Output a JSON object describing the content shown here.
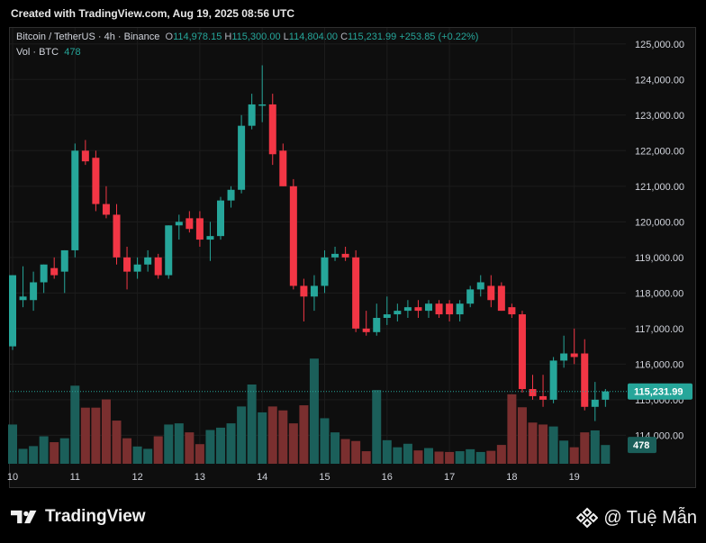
{
  "header": {
    "created_text": "Created with TradingView.com, Aug 19, 2025 08:56 UTC"
  },
  "legend": {
    "symbol": "Bitcoin / TetherUS · 4h · Binance",
    "o_label": "O",
    "o_value": "114,978.15",
    "h_label": "H",
    "h_value": "115,300.00",
    "l_label": "L",
    "l_value": "114,804.00",
    "c_label": "C",
    "c_value": "115,231.99",
    "change": "+253.85 (+0.22%)",
    "vol_label": "Vol · BTC",
    "vol_value": "478"
  },
  "colors": {
    "up": "#26a69a",
    "down": "#f23645",
    "vol_up": "#1b5f5a",
    "vol_down": "#7a2f2f",
    "grid": "#1c1c1c",
    "axis_text": "#d1d4dc"
  },
  "footer": {
    "brand": "TradingView",
    "watermark": "@ Tuệ Mẫn"
  },
  "chart_data": {
    "type": "candlestick",
    "interval": "4h",
    "price_axis": {
      "side": "right",
      "range": [
        113200,
        125450
      ],
      "ticks": [
        114000,
        115000,
        116000,
        117000,
        118000,
        119000,
        120000,
        121000,
        122000,
        123000,
        124000,
        125000
      ],
      "tick_labels": [
        "114,000.00",
        "115,000.00",
        "116,000.00",
        "117,000.00",
        "118,000.00",
        "119,000.00",
        "120,000.00",
        "121,000.00",
        "122,000.00",
        "123,000.00",
        "124,000.00",
        "125,000.00"
      ]
    },
    "time_axis": {
      "day_labels": [
        "10",
        "11",
        "12",
        "13",
        "14",
        "15",
        "16",
        "17",
        "18",
        "19"
      ],
      "label_candle_index": [
        0,
        6,
        12,
        18,
        24,
        30,
        36,
        42,
        48,
        54
      ]
    },
    "last_price": {
      "value": 115231.99,
      "label": "115,231.99"
    },
    "last_volume": {
      "value": 478,
      "label": "478"
    },
    "volume_range": [
      0,
      2800
    ],
    "candles": [
      {
        "o": 116500,
        "h": 118500,
        "l": 116400,
        "c": 118500,
        "v": 1000
      },
      {
        "o": 117800,
        "h": 118750,
        "l": 117600,
        "c": 117900,
        "v": 380
      },
      {
        "o": 117800,
        "h": 118600,
        "l": 117500,
        "c": 118300,
        "v": 450
      },
      {
        "o": 118300,
        "h": 118800,
        "l": 118000,
        "c": 118800,
        "v": 700
      },
      {
        "o": 118700,
        "h": 119000,
        "l": 118400,
        "c": 118500,
        "v": 550
      },
      {
        "o": 118600,
        "h": 119200,
        "l": 118000,
        "c": 119200,
        "v": 650
      },
      {
        "o": 119200,
        "h": 122200,
        "l": 119000,
        "c": 122000,
        "v": 1990
      },
      {
        "o": 122000,
        "h": 122300,
        "l": 121600,
        "c": 121700,
        "v": 1430
      },
      {
        "o": 121800,
        "h": 122000,
        "l": 120300,
        "c": 120500,
        "v": 1430
      },
      {
        "o": 120500,
        "h": 121000,
        "l": 120100,
        "c": 120200,
        "v": 1640
      },
      {
        "o": 120200,
        "h": 120500,
        "l": 118800,
        "c": 119000,
        "v": 1100
      },
      {
        "o": 119000,
        "h": 119300,
        "l": 118100,
        "c": 118600,
        "v": 650
      },
      {
        "o": 118600,
        "h": 119000,
        "l": 118400,
        "c": 118800,
        "v": 440
      },
      {
        "o": 118800,
        "h": 119200,
        "l": 118600,
        "c": 119000,
        "v": 380
      },
      {
        "o": 119000,
        "h": 119100,
        "l": 118400,
        "c": 118500,
        "v": 700
      },
      {
        "o": 118500,
        "h": 119900,
        "l": 118400,
        "c": 119900,
        "v": 1000
      },
      {
        "o": 119900,
        "h": 120200,
        "l": 119500,
        "c": 120000,
        "v": 1030
      },
      {
        "o": 120100,
        "h": 120300,
        "l": 119700,
        "c": 119800,
        "v": 800
      },
      {
        "o": 120100,
        "h": 120300,
        "l": 119300,
        "c": 119500,
        "v": 500
      },
      {
        "o": 119500,
        "h": 120000,
        "l": 118900,
        "c": 119600,
        "v": 860
      },
      {
        "o": 119600,
        "h": 120700,
        "l": 119500,
        "c": 120600,
        "v": 920
      },
      {
        "o": 120600,
        "h": 121000,
        "l": 120400,
        "c": 120900,
        "v": 1030
      },
      {
        "o": 120900,
        "h": 123000,
        "l": 120800,
        "c": 122700,
        "v": 1460
      },
      {
        "o": 122700,
        "h": 123600,
        "l": 122600,
        "c": 123300,
        "v": 2020
      },
      {
        "o": 123300,
        "h": 124400,
        "l": 122800,
        "c": 123300,
        "v": 1310
      },
      {
        "o": 123300,
        "h": 123600,
        "l": 121600,
        "c": 121900,
        "v": 1460
      },
      {
        "o": 122000,
        "h": 122200,
        "l": 121000,
        "c": 121000,
        "v": 1360
      },
      {
        "o": 121000,
        "h": 121200,
        "l": 118100,
        "c": 118200,
        "v": 1030
      },
      {
        "o": 118200,
        "h": 118400,
        "l": 117200,
        "c": 117900,
        "v": 1490
      },
      {
        "o": 117900,
        "h": 118500,
        "l": 117500,
        "c": 118200,
        "v": 2680
      },
      {
        "o": 118200,
        "h": 119200,
        "l": 118000,
        "c": 119000,
        "v": 1160
      },
      {
        "o": 119000,
        "h": 119300,
        "l": 118900,
        "c": 119100,
        "v": 800
      },
      {
        "o": 119100,
        "h": 119300,
        "l": 118900,
        "c": 119000,
        "v": 630
      },
      {
        "o": 119000,
        "h": 119200,
        "l": 116900,
        "c": 117000,
        "v": 580
      },
      {
        "o": 117000,
        "h": 117500,
        "l": 116800,
        "c": 116900,
        "v": 320
      },
      {
        "o": 116900,
        "h": 117700,
        "l": 116800,
        "c": 117300,
        "v": 1880
      },
      {
        "o": 117300,
        "h": 117900,
        "l": 117100,
        "c": 117400,
        "v": 600
      },
      {
        "o": 117400,
        "h": 117700,
        "l": 117200,
        "c": 117500,
        "v": 420
      },
      {
        "o": 117500,
        "h": 117800,
        "l": 117300,
        "c": 117600,
        "v": 510
      },
      {
        "o": 117600,
        "h": 117800,
        "l": 117300,
        "c": 117500,
        "v": 340
      },
      {
        "o": 117500,
        "h": 117800,
        "l": 117300,
        "c": 117700,
        "v": 400
      },
      {
        "o": 117700,
        "h": 117800,
        "l": 117300,
        "c": 117400,
        "v": 310
      },
      {
        "o": 117700,
        "h": 117800,
        "l": 117200,
        "c": 117400,
        "v": 300
      },
      {
        "o": 117400,
        "h": 117800,
        "l": 117200,
        "c": 117700,
        "v": 320
      },
      {
        "o": 117700,
        "h": 118200,
        "l": 117600,
        "c": 118100,
        "v": 370
      },
      {
        "o": 118100,
        "h": 118500,
        "l": 117900,
        "c": 118300,
        "v": 300
      },
      {
        "o": 118200,
        "h": 118500,
        "l": 117600,
        "c": 117800,
        "v": 330
      },
      {
        "o": 118200,
        "h": 118300,
        "l": 117500,
        "c": 117500,
        "v": 480
      },
      {
        "o": 117600,
        "h": 117700,
        "l": 117300,
        "c": 117400,
        "v": 1770
      },
      {
        "o": 117400,
        "h": 117500,
        "l": 115200,
        "c": 115300,
        "v": 1440
      },
      {
        "o": 115300,
        "h": 115700,
        "l": 115000,
        "c": 115100,
        "v": 1050
      },
      {
        "o": 115100,
        "h": 115700,
        "l": 114800,
        "c": 115000,
        "v": 1000
      },
      {
        "o": 115000,
        "h": 116200,
        "l": 114900,
        "c": 116100,
        "v": 950
      },
      {
        "o": 116100,
        "h": 116800,
        "l": 115900,
        "c": 116300,
        "v": 590
      },
      {
        "o": 116300,
        "h": 117000,
        "l": 116000,
        "c": 116200,
        "v": 420
      },
      {
        "o": 116300,
        "h": 116700,
        "l": 114700,
        "c": 114800,
        "v": 800
      },
      {
        "o": 114800,
        "h": 115500,
        "l": 114400,
        "c": 115000,
        "v": 850
      },
      {
        "o": 115000,
        "h": 115300,
        "l": 114800,
        "c": 115232,
        "v": 478
      }
    ]
  }
}
